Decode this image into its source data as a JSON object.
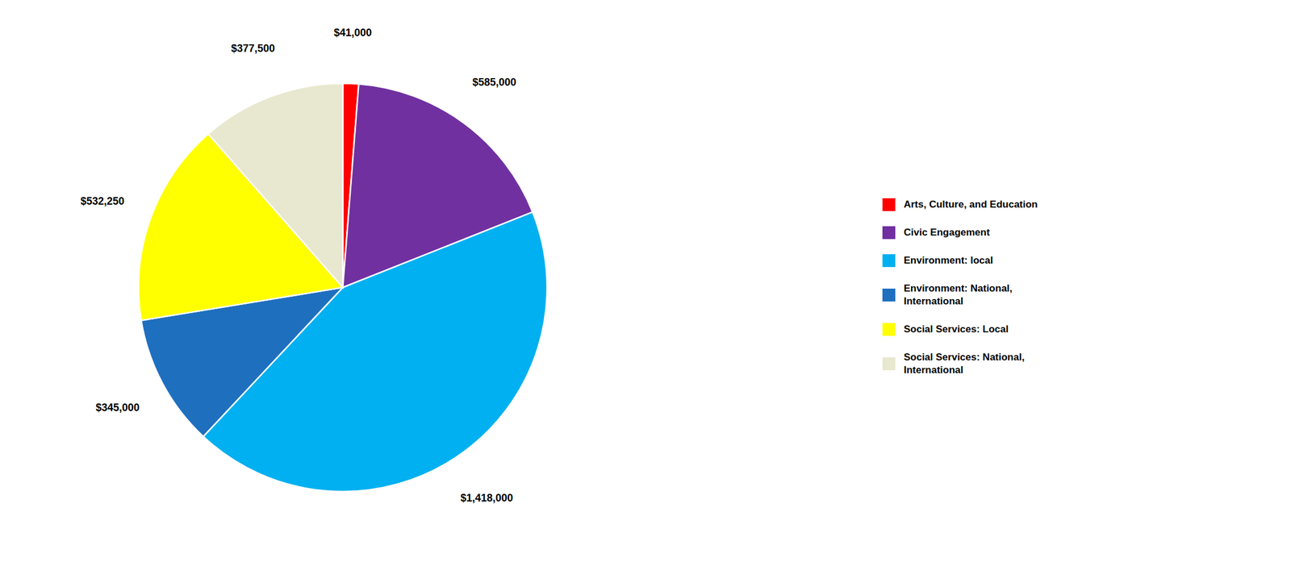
{
  "chart_data": {
    "type": "pie",
    "categories": [
      "Arts, Culture, and Education",
      "Civic Engagement",
      "Environment: local",
      "Environment: National,\nInternational",
      "Social Services: Local",
      "Social Services: National,\nInternational"
    ],
    "values": [
      41000,
      585000,
      1418000,
      345000,
      532250,
      377500
    ],
    "value_labels": [
      "$41,000",
      "$585,000",
      "$1,418,000",
      "$345,000",
      "$532,250",
      "$377,500"
    ],
    "colors": [
      "#FF0000",
      "#7030A0",
      "#00B0F0",
      "#1F6FBF",
      "#FFFF00",
      "#E8E8D0"
    ],
    "data_labels": true,
    "legend": "right"
  }
}
